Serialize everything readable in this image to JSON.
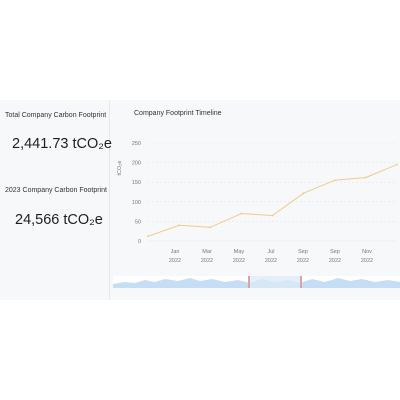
{
  "kpis": {
    "total": {
      "label": "Total Company Carbon Footprint",
      "value": "2,441.73 tCO₂e"
    },
    "year": {
      "label": "2023 Company Carbon Footprint",
      "value": "24,566 tCO₂e"
    }
  },
  "chart": {
    "title": "Company Footprint Timeline"
  },
  "chart_data": {
    "type": "line",
    "title": "Company Footprint Timeline",
    "ylabel": "tCO₂e",
    "ylim": [
      0,
      250
    ],
    "yticks": [
      0,
      50,
      100,
      150,
      200,
      250
    ],
    "xticks": [
      {
        "month": "Jan",
        "year": "2022"
      },
      {
        "month": "Mar",
        "year": "2022"
      },
      {
        "month": "May",
        "year": "2022"
      },
      {
        "month": "Jul",
        "year": "2022"
      },
      {
        "month": "Sep",
        "year": "2022"
      },
      {
        "month": "Sep",
        "year": "2022"
      },
      {
        "month": "Nov",
        "year": "2022"
      }
    ],
    "series": [
      {
        "values": [
          12,
          40,
          35,
          70,
          65,
          122,
          155,
          162,
          195
        ]
      }
    ],
    "line_color": "#f0c98a",
    "grid": true,
    "legend": "none"
  },
  "colors": {
    "slider_fill": "#c6def4",
    "slider_window": "#dbe9f7",
    "handle": "#d8a4a4"
  }
}
